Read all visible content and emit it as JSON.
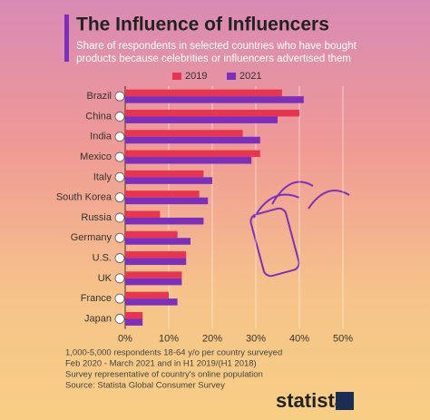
{
  "chart_data": {
    "type": "bar",
    "orientation": "horizontal",
    "title": "The Influence of Influencers",
    "subtitle": [
      "Share of respondents in selected countries who have bought",
      "products because celebrities or influencers advertised them"
    ],
    "categories": [
      "Brazil",
      "China",
      "India",
      "Mexico",
      "Italy",
      "South Korea",
      "Russia",
      "Germany",
      "U.S.",
      "UK",
      "France",
      "Japan"
    ],
    "series": [
      {
        "name": "2019",
        "color": "#e8344e",
        "values": [
          36,
          40,
          27,
          31,
          18,
          17,
          8,
          12,
          14,
          13,
          10,
          4
        ]
      },
      {
        "name": "2021",
        "color": "#7b2fbe",
        "values": [
          41,
          35,
          31,
          29,
          20,
          19,
          18,
          15,
          14,
          13,
          12,
          4
        ]
      }
    ],
    "xlim": [
      0,
      50
    ],
    "xticks": [
      {
        "value": 0,
        "label": "0%"
      },
      {
        "value": 10,
        "label": "10%"
      },
      {
        "value": 20,
        "label": "20%"
      },
      {
        "value": 30,
        "label": "30%"
      },
      {
        "value": 40,
        "label": "40%"
      },
      {
        "value": 50,
        "label": "50%"
      }
    ],
    "grid": true,
    "notes": [
      "1,000-5,000 respondents 18-64 y/o per country surveyed",
      "Feb 2020 - March 2021 and in H1 2019/(H1 2018)",
      "Survey representative of country's online population",
      "Source: Statista Global Consumer Survey"
    ],
    "brand": "statista"
  }
}
